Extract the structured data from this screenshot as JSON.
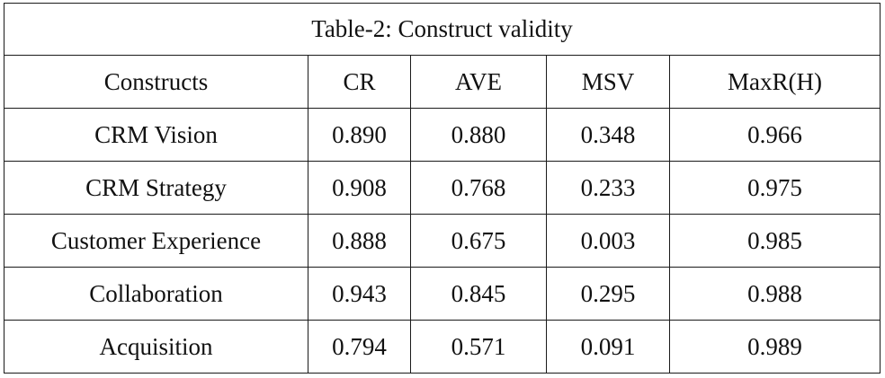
{
  "table": {
    "caption": "Table-2: Construct validity",
    "headers": [
      "Constructs",
      "CR",
      "AVE",
      "MSV",
      "MaxR(H)"
    ],
    "rows": [
      [
        "CRM Vision",
        "0.890",
        "0.880",
        "0.348",
        "0.966"
      ],
      [
        "CRM Strategy",
        "0.908",
        "0.768",
        "0.233",
        "0.975"
      ],
      [
        "Customer Experience",
        "0.888",
        "0.675",
        "0.003",
        "0.985"
      ],
      [
        "Collaboration",
        "0.943",
        "0.845",
        "0.295",
        "0.988"
      ],
      [
        "Acquisition",
        "0.794",
        "0.571",
        "0.091",
        "0.989"
      ]
    ]
  }
}
